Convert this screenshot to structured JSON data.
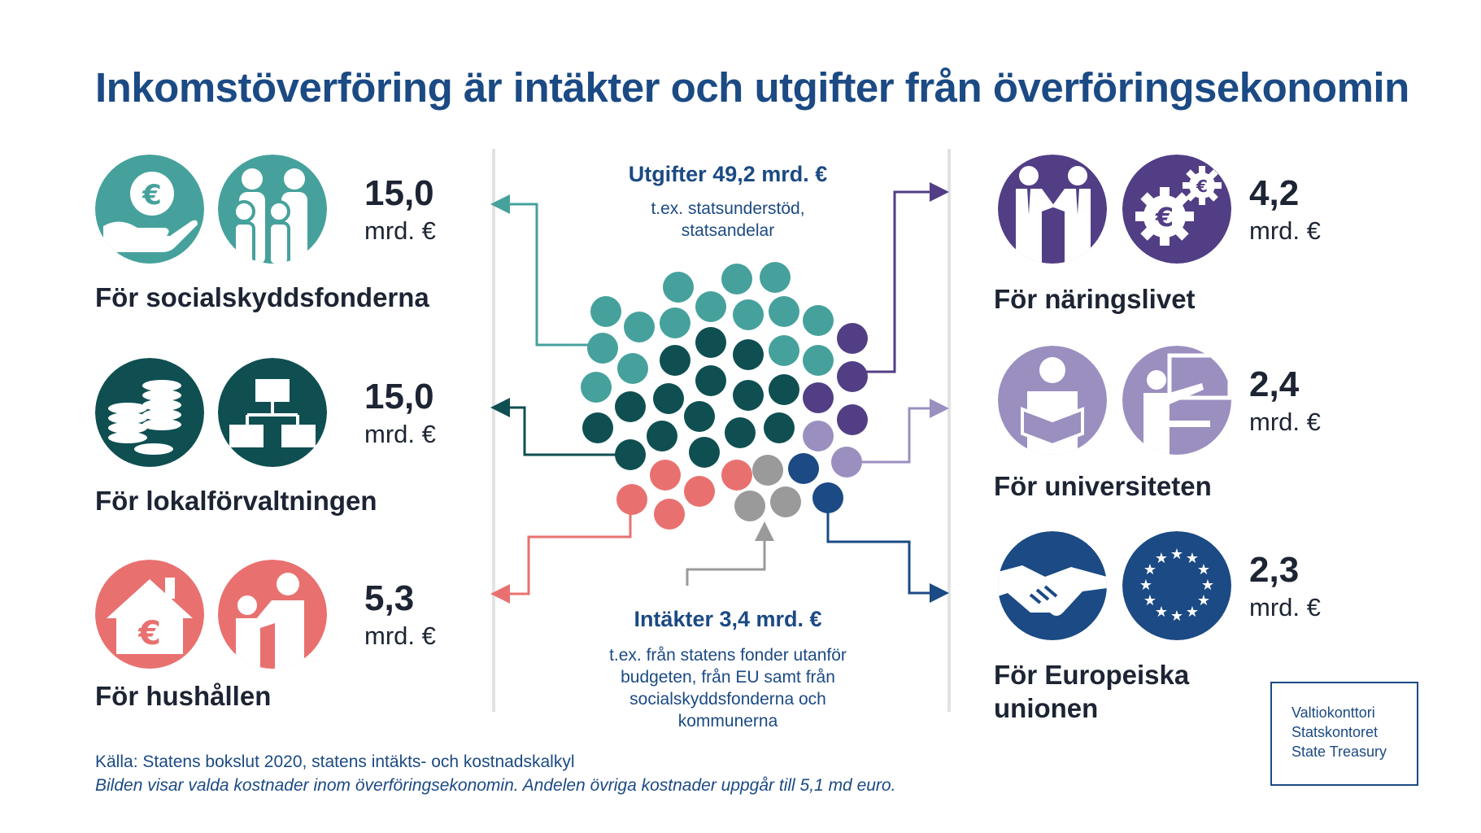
{
  "title": "Inkomstöverföring är intäkter och utgifter från överföringsekonomin",
  "expenditure": {
    "heading": "Utgifter 49,2 mrd. €",
    "subtitle_line1": "t.ex. statsunderstöd,",
    "subtitle_line2": "statsandelar"
  },
  "income": {
    "heading": "Intäkter 3,4 mrd. €",
    "subtitle_line1": "t.ex. från statens fonder utanför",
    "subtitle_line2": "budgeten, från EU samt från",
    "subtitle_line3": "socialskyddsfonderna och",
    "subtitle_line4": "kommunerna"
  },
  "left_categories": [
    {
      "amount": "15,0",
      "unit": "mrd. €",
      "label": "För socialskyddsfonderna",
      "color": "#46a19c",
      "icons": [
        "hand-euro-icon",
        "family-icon"
      ]
    },
    {
      "amount": "15,0",
      "unit": "mrd. €",
      "label": "För lokalförvaltningen",
      "color": "#0f4f52",
      "icons": [
        "coins-icon",
        "org-chart-icon"
      ]
    },
    {
      "amount": "5,3",
      "unit": "mrd. €",
      "label": "För hushållen",
      "color": "#e8716f",
      "icons": [
        "house-euro-icon",
        "parent-child-icon"
      ]
    }
  ],
  "right_categories": [
    {
      "amount": "4,2",
      "unit": "mrd. €",
      "label": "För näringslivet",
      "color": "#523e85",
      "icons": [
        "business-handshake-icon",
        "euro-gears-icon"
      ]
    },
    {
      "amount": "2,4",
      "unit": "mrd. €",
      "label": "För universiteten",
      "color": "#9b8fc0",
      "icons": [
        "reader-icon",
        "teacher-icon"
      ]
    },
    {
      "amount": "2,3",
      "unit": "mrd. €",
      "label_line1": "För Europeiska",
      "label_line2": "unionen",
      "color": "#1b4a84",
      "icons": [
        "handshake-icon",
        "eu-flag-icon"
      ]
    }
  ],
  "colors": {
    "title": "#1b4a84",
    "teal": "#46a19c",
    "dark_teal": "#0f4f52",
    "coral": "#e8716f",
    "grey": "#9a9a9a",
    "navy": "#1b4a84",
    "purple": "#523e85",
    "lavender": "#9b8fc0"
  },
  "footer": {
    "source": "Källa: Statens bokslut 2020, statens intäkts- och kostnadskalkyl",
    "note": "Bilden visar valda kostnader inom överföringsekonomin. Andelen övriga kostnader uppgår till 5,1 md euro."
  },
  "logo": {
    "line1": "Valtiokonttori",
    "line2": "Statskontoret",
    "line3": "State Treasury"
  }
}
